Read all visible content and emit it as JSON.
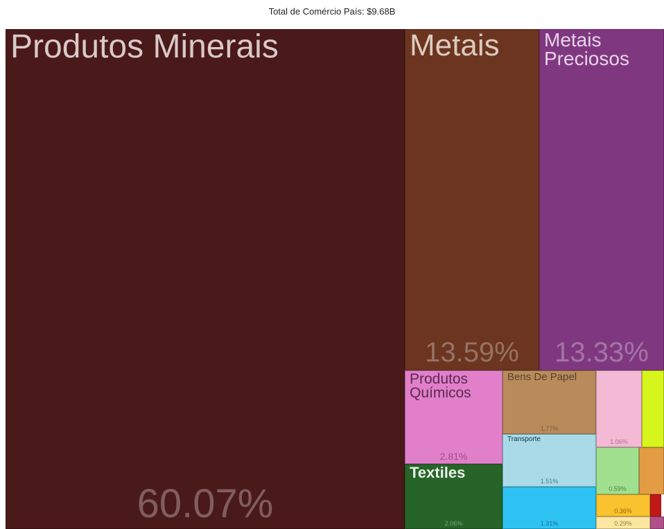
{
  "chart_data": {
    "type": "treemap",
    "title": "Total de Comércio País: $9.68B",
    "categories": [
      "Produtos Minerais",
      "Metais",
      "Metais Preciosos",
      "Produtos Químicos",
      "Textiles",
      "Bens De Papel",
      "Transporte",
      null,
      null,
      null,
      null,
      null,
      null,
      null,
      null,
      null
    ],
    "values": [
      60.07,
      13.59,
      13.33,
      2.81,
      2.06,
      1.77,
      1.51,
      1.31,
      1.06,
      0.51,
      0.59,
      0.35,
      0.36,
      0.07,
      0.29,
      0.05
    ],
    "value_labels": [
      "60.07%",
      "13.59%",
      "13.33%",
      "2.81%",
      "2.06%",
      "1.77%",
      "1.51%",
      "1.31%",
      "1.06%",
      null,
      "0.59%",
      null,
      "0.36%",
      null,
      "0.29%",
      null
    ],
    "colors": [
      "#4a191a",
      "#6b3520",
      "#7f3880",
      "#e27fcb",
      "#276428",
      "#b98b5b",
      "#a8dbe7",
      "#2ec2f2",
      "#f4b9d5",
      "#d6f51c",
      "#a1e08f",
      "#e39c43",
      "#f9c22e",
      "#c21818",
      "#fbe7a2",
      "#b0508a"
    ]
  }
}
